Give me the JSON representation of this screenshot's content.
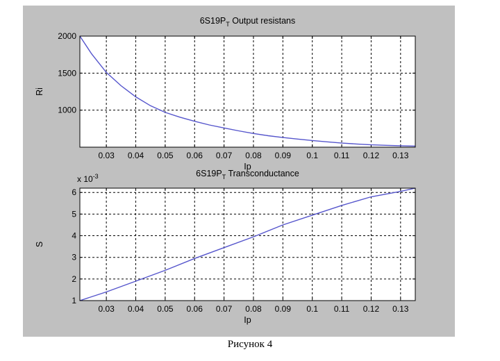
{
  "caption": "Рисунок 4",
  "colors": {
    "figure_bg": "#c0c0c0",
    "axes_bg": "#ffffff",
    "line": "#5555cc",
    "grid": "#000000"
  },
  "chart_data": [
    {
      "type": "line",
      "title_main": "6S19P",
      "title_sub": "T",
      "title_rest": " Output resistans",
      "xlabel": "Ip",
      "ylabel": "Ri",
      "xlim": [
        0.021,
        0.135
      ],
      "ylim": [
        500,
        2000
      ],
      "xticks": [
        0.03,
        0.04,
        0.05,
        0.06,
        0.07,
        0.08,
        0.09,
        0.1,
        0.11,
        0.12,
        0.13
      ],
      "xtick_labels": [
        "0.03",
        "0.04",
        "0.05",
        "0.06",
        "0.07",
        "0.08",
        "0.09",
        "0.1",
        "0.11",
        "0.12",
        "0.13"
      ],
      "yticks": [
        1000,
        1500,
        2000
      ],
      "ytick_labels": [
        "1000",
        "1500",
        "2000"
      ],
      "grid": true,
      "series": [
        {
          "x": [
            0.021,
            0.025,
            0.03,
            0.035,
            0.04,
            0.045,
            0.05,
            0.055,
            0.06,
            0.065,
            0.07,
            0.075,
            0.08,
            0.085,
            0.09,
            0.095,
            0.1,
            0.105,
            0.11,
            0.115,
            0.12,
            0.125,
            0.13,
            0.135
          ],
          "y": [
            2000,
            1760,
            1510,
            1330,
            1180,
            1060,
            970,
            905,
            850,
            800,
            760,
            720,
            685,
            655,
            630,
            610,
            590,
            572,
            555,
            543,
            532,
            525,
            520,
            515
          ]
        }
      ]
    },
    {
      "type": "line",
      "title_main": "6S19P",
      "title_sub": "T",
      "title_rest": " Transconductance",
      "xlabel": "Ip",
      "ylabel": "S",
      "scale_label_base": "x 10",
      "scale_label_exp": "-3",
      "xlim": [
        0.021,
        0.135
      ],
      "ylim": [
        1,
        6.2
      ],
      "xticks": [
        0.03,
        0.04,
        0.05,
        0.06,
        0.07,
        0.08,
        0.09,
        0.1,
        0.11,
        0.12,
        0.13
      ],
      "xtick_labels": [
        "0.03",
        "0.04",
        "0.05",
        "0.06",
        "0.07",
        "0.08",
        "0.09",
        "0.1",
        "0.11",
        "0.12",
        "0.13"
      ],
      "yticks": [
        1,
        2,
        3,
        4,
        5,
        6
      ],
      "ytick_labels": [
        "1",
        "2",
        "3",
        "4",
        "5",
        "6"
      ],
      "grid": true,
      "series": [
        {
          "x": [
            0.021,
            0.03,
            0.04,
            0.05,
            0.06,
            0.07,
            0.08,
            0.09,
            0.1,
            0.11,
            0.12,
            0.13,
            0.135
          ],
          "y": [
            1.0,
            1.4,
            1.9,
            2.4,
            2.95,
            3.45,
            3.95,
            4.5,
            4.95,
            5.4,
            5.8,
            6.05,
            6.2
          ]
        }
      ]
    }
  ]
}
